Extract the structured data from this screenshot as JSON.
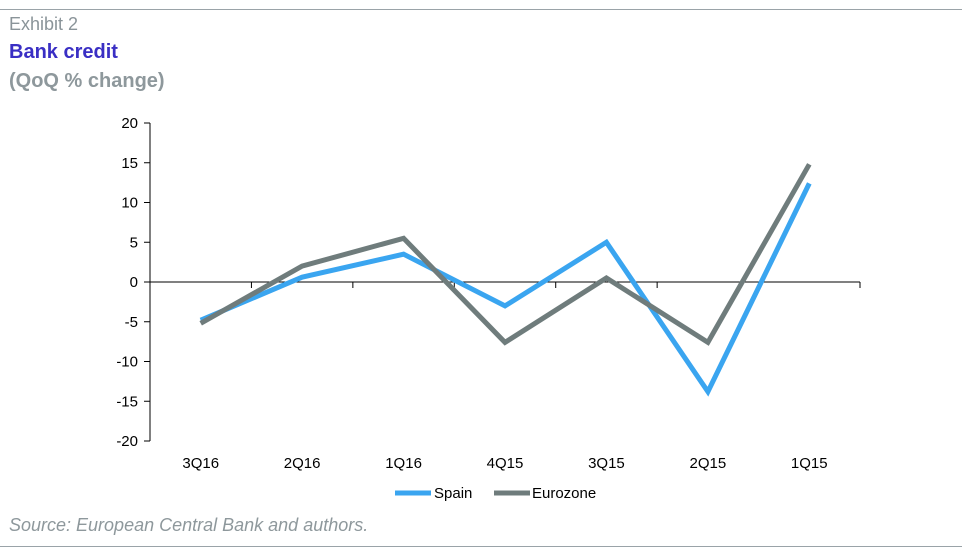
{
  "header": {
    "exhibit": "Exhibit 2",
    "title": "Bank credit",
    "subtitle": "(QoQ % change)"
  },
  "footer": {
    "source": "Source: European Central Bank and authors."
  },
  "chart_data": {
    "type": "line",
    "categories": [
      "3Q16",
      "2Q16",
      "1Q16",
      "4Q15",
      "3Q15",
      "2Q15",
      "1Q15"
    ],
    "series": [
      {
        "name": "Spain",
        "color": "#3aa5f0",
        "values": [
          -4.8,
          0.6,
          3.5,
          -3.0,
          5.0,
          -13.8,
          12.4
        ]
      },
      {
        "name": "Eurozone",
        "color": "#6f7c7c",
        "values": [
          -5.2,
          2.0,
          5.5,
          -7.6,
          0.5,
          -7.6,
          14.8
        ]
      }
    ],
    "yticks": [
      "20",
      "15",
      "10",
      "5",
      "0",
      "-5",
      "-10",
      "-15",
      "-20"
    ],
    "ylim": [
      -20,
      20
    ],
    "xlabel": "",
    "ylabel": "",
    "grid": false,
    "legend": "bottom-center"
  }
}
